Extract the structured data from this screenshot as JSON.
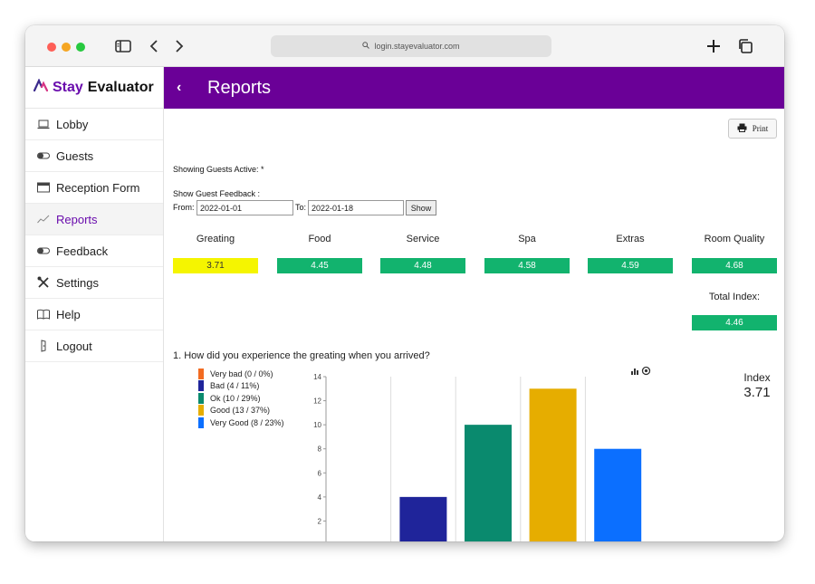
{
  "browser": {
    "url": "login.stayevaluator.com"
  },
  "brand": {
    "word1": "Stay",
    "word2": "Evaluator"
  },
  "sidebar": {
    "items": [
      {
        "label": "Lobby",
        "icon": "laptop-icon"
      },
      {
        "label": "Guests",
        "icon": "toggle-icon"
      },
      {
        "label": "Reception Form",
        "icon": "window-icon"
      },
      {
        "label": "Reports",
        "icon": "trend-icon",
        "active": true
      },
      {
        "label": "Feedback",
        "icon": "toggle-icon"
      },
      {
        "label": "Settings",
        "icon": "tools-icon"
      },
      {
        "label": "Help",
        "icon": "book-icon"
      },
      {
        "label": "Logout",
        "icon": "door-icon"
      }
    ]
  },
  "header": {
    "title": "Reports"
  },
  "toolbar": {
    "print_label": "Print"
  },
  "filters": {
    "showing": "Showing Guests Active: *",
    "feedback_label": "Show Guest Feedback :",
    "from_label": "From:",
    "from_value": "2022-01-01",
    "to_label": "To:",
    "to_value": "2022-01-18",
    "show_label": "Show"
  },
  "scores": [
    {
      "label": "Greating",
      "value": "3.71",
      "color": "#f5f500",
      "text_color": "#333333"
    },
    {
      "label": "Food",
      "value": "4.45",
      "color": "#12b36e",
      "text_color": "#ffffff"
    },
    {
      "label": "Service",
      "value": "4.48",
      "color": "#12b36e",
      "text_color": "#ffffff"
    },
    {
      "label": "Spa",
      "value": "4.58",
      "color": "#12b36e",
      "text_color": "#ffffff"
    },
    {
      "label": "Extras",
      "value": "4.59",
      "color": "#12b36e",
      "text_color": "#ffffff"
    },
    {
      "label": "Room Quality",
      "value": "4.68",
      "color": "#12b36e",
      "text_color": "#ffffff"
    }
  ],
  "total": {
    "label": "Total Index:",
    "value": "4.46",
    "color": "#12b36e"
  },
  "question": {
    "text": "1. How did you experience the greating when you arrived?"
  },
  "index": {
    "label": "Index",
    "value": "3.71"
  },
  "chart_data": {
    "type": "bar",
    "categories": [
      "Very bad",
      "Bad",
      "Ok",
      "Good",
      "Very Good"
    ],
    "values": [
      0,
      4,
      10,
      13,
      8
    ],
    "colors": [
      "#f26b21",
      "#1f249a",
      "#0a8a6e",
      "#e6ad00",
      "#0b6fff"
    ],
    "legend": [
      "Very bad (0 / 0%)",
      "Bad (4 / 11%)",
      "Ok (10 / 29%)",
      "Good (13 / 37%)",
      "Very Good (8 / 23%)"
    ],
    "legend_position": "top-left",
    "ylim": [
      0,
      14
    ],
    "yticks": [
      "0",
      "2",
      "4",
      "6",
      "8",
      "10",
      "12",
      "14"
    ],
    "grid": "vertical",
    "title": "",
    "xlabel": "",
    "ylabel": ""
  }
}
